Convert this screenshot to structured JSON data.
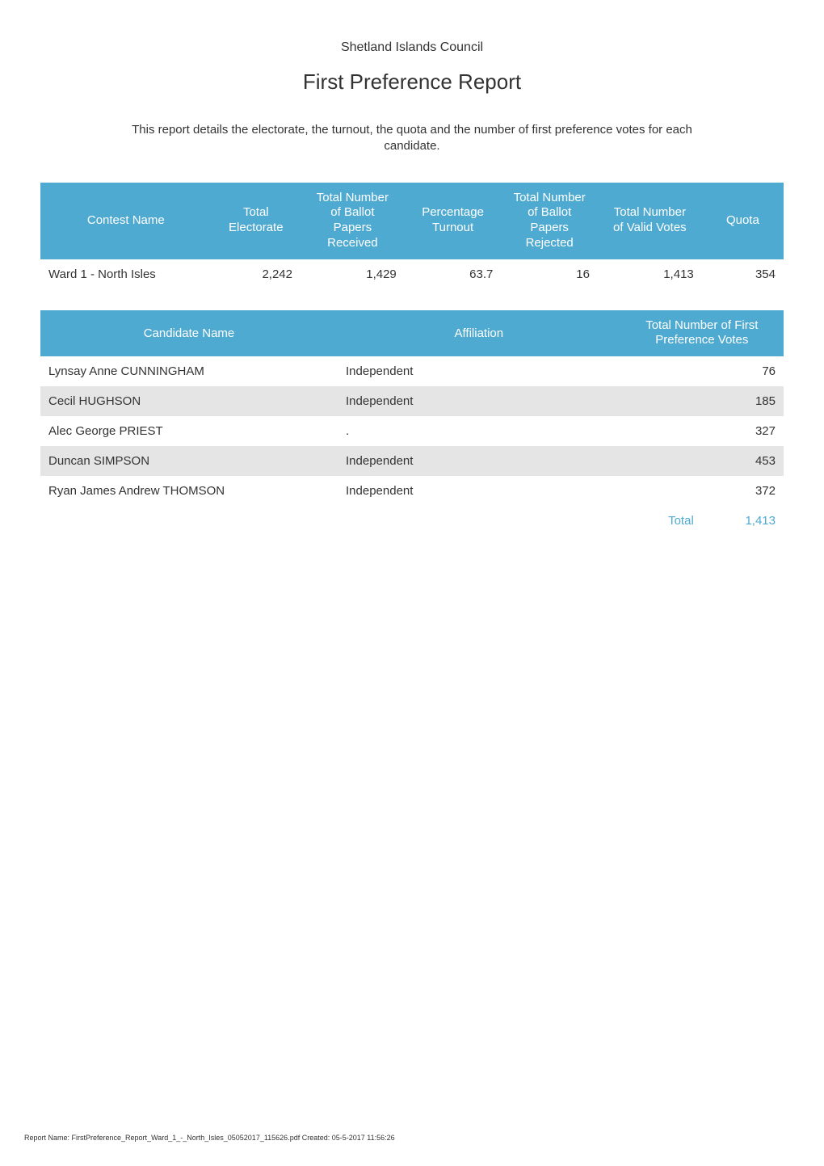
{
  "header": {
    "council_name": "Shetland Islands Council",
    "report_title": "First Preference Report",
    "description_line1": "This report details the electorate, the turnout, the quota and the number of first preference votes for each",
    "description_line2": "candidate."
  },
  "colors": {
    "header_bg": "#4faad2",
    "header_fg": "#ffffff",
    "row_alt_bg": "#e5e5e5",
    "text": "#333333",
    "total": "#4faad2",
    "background": "#ffffff"
  },
  "summary_table": {
    "type": "table",
    "columns": [
      {
        "label": "Contest Name",
        "align": "left",
        "width": "23%"
      },
      {
        "label": "Total\nElectorate",
        "align": "right",
        "width": "12%"
      },
      {
        "label": "Total Number\nof Ballot\nPapers\nReceived",
        "align": "right",
        "width": "14%"
      },
      {
        "label": "Percentage\nTurnout",
        "align": "right",
        "width": "13%"
      },
      {
        "label": "Total Number\nof Ballot\nPapers\nRejected",
        "align": "right",
        "width": "13%"
      },
      {
        "label": "Total Number\nof Valid Votes",
        "align": "right",
        "width": "14%"
      },
      {
        "label": "Quota",
        "align": "right",
        "width": "11%"
      }
    ],
    "row": {
      "contest": "Ward 1 - North Isles",
      "electorate": "2,242",
      "received": "1,429",
      "turnout": "63.7",
      "rejected": "16",
      "valid": "1,413",
      "quota": "354"
    }
  },
  "candidates_table": {
    "type": "table",
    "columns": [
      {
        "label": "Candidate Name",
        "align": "left",
        "width": "40%"
      },
      {
        "label": "Affiliation",
        "align": "left",
        "width": "38%"
      },
      {
        "label": "Total Number of First\nPreference Votes",
        "align": "right",
        "width": "22%"
      }
    ],
    "rows": [
      {
        "name": "Lynsay Anne CUNNINGHAM",
        "affiliation": "Independent",
        "votes": "76"
      },
      {
        "name": "Cecil HUGHSON",
        "affiliation": "Independent",
        "votes": "185"
      },
      {
        "name": "Alec George PRIEST",
        "affiliation": ".",
        "votes": "327"
      },
      {
        "name": "Duncan SIMPSON",
        "affiliation": "Independent",
        "votes": "453"
      },
      {
        "name": "Ryan James Andrew THOMSON",
        "affiliation": "Independent",
        "votes": "372"
      }
    ],
    "total_label": "Total",
    "total_value": "1,413"
  },
  "footer": {
    "text": "Report Name: FirstPreference_Report_Ward_1_-_North_Isles_05052017_115626.pdf Created: 05-5-2017 11:56:26"
  }
}
